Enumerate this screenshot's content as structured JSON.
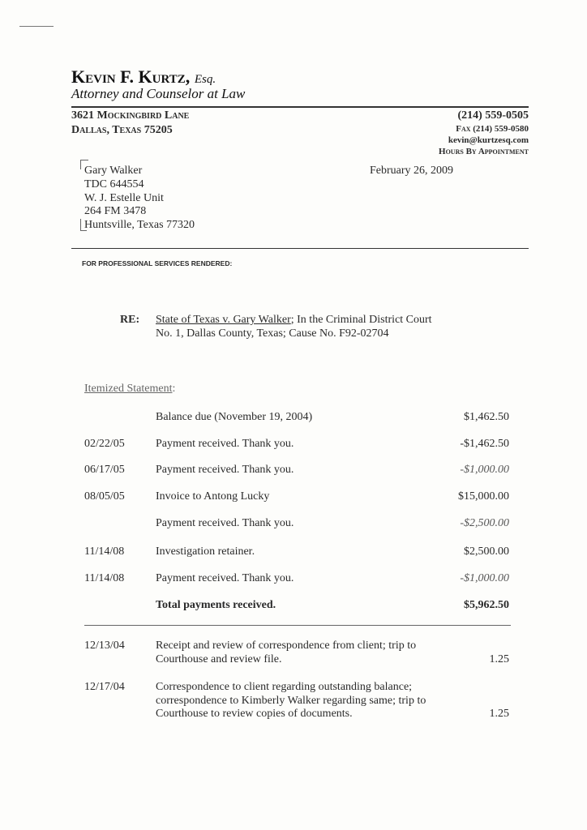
{
  "letterhead": {
    "name": "Kevin F. Kurtz,",
    "esq": "Esq.",
    "tagline": "Attorney and Counselor at Law",
    "address1": "3621 Mockingbird Lane",
    "address2": "Dallas, Texas 75205",
    "phone": "(214) 559-0505",
    "fax": "Fax (214) 559-0580",
    "email": "kevin@kurtzesq.com",
    "hours": "Hours By Appointment"
  },
  "recipient": [
    "Gary Walker",
    "TDC 644554",
    "W. J. Estelle Unit",
    "264 FM 3478",
    "Huntsville, Texas  77320"
  ],
  "date": "February 26, 2009",
  "services_heading": "FOR PROFESSIONAL SERVICES RENDERED:",
  "re": {
    "label": "RE:",
    "case_name": "State of Texas v. Gary Walker",
    "line1_rest": "; In the Criminal District Court",
    "line2": "No. 1, Dallas County, Texas;  Cause No. F92-02704"
  },
  "statement_heading": "Itemized Statement",
  "statement": [
    {
      "date": "",
      "desc": "Balance due (November 19, 2004)",
      "amount": "$1,462.50",
      "italic": false
    },
    {
      "date": "02/22/05",
      "desc": "Payment received.  Thank you.",
      "amount": "-$1,462.50",
      "italic": false
    },
    {
      "date": "06/17/05",
      "desc": "Payment received.  Thank you.",
      "amount": "-$1,000.00",
      "italic": true
    },
    {
      "date": "08/05/05",
      "desc": "Invoice to Antong Lucky",
      "amount": "$15,000.00",
      "italic": false
    },
    {
      "date": "",
      "desc": "Payment received.  Thank you.",
      "amount": "-$2,500.00",
      "italic": true
    },
    {
      "date": "11/14/08",
      "desc": "Investigation retainer.",
      "amount": "$2,500.00",
      "italic": false
    },
    {
      "date": "11/14/08",
      "desc": "Payment received.  Thank you.",
      "amount": "-$1,000.00",
      "italic": true
    }
  ],
  "total": {
    "label": "Total payments received.",
    "amount": "$5,962.50"
  },
  "services": [
    {
      "date": "12/13/04",
      "lines": [
        "Receipt and review of correspondence from client; trip to",
        "Courthouse and review file."
      ],
      "hours": "1.25"
    },
    {
      "date": "12/17/04",
      "lines": [
        "Correspondence to client regarding outstanding balance;",
        "correspondence to Kimberly Walker regarding same; trip to",
        "Courthouse to review copies of documents."
      ],
      "hours": "1.25"
    }
  ]
}
